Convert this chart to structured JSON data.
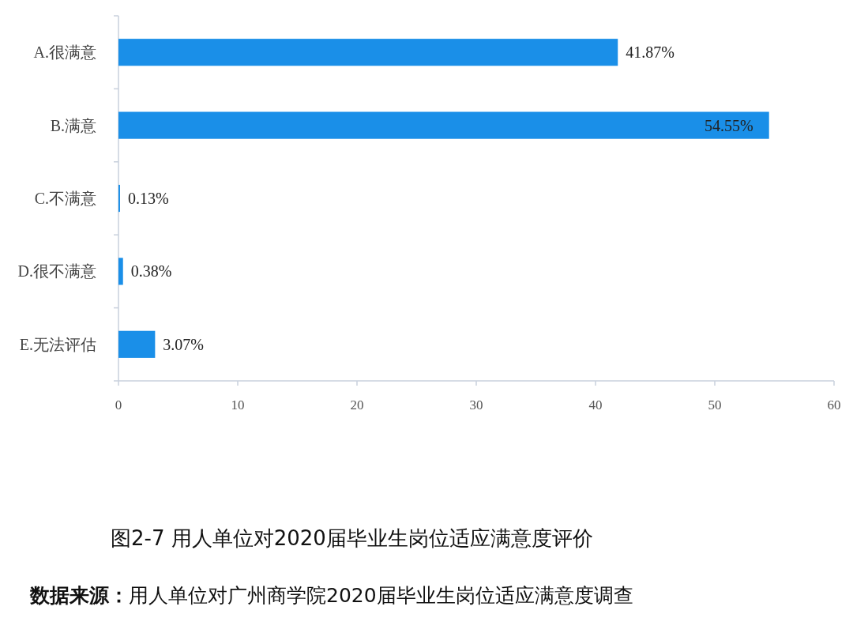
{
  "chart_data": {
    "type": "bar",
    "orientation": "horizontal",
    "title": "图2-7  用人单位对2020届毕业生岗位适应满意度评价",
    "categories": [
      "A.很满意",
      "B.满意",
      "C.不满意",
      "D.很不满意",
      "E.无法评估"
    ],
    "values": [
      41.87,
      54.55,
      0.13,
      0.38,
      3.07
    ],
    "value_labels": [
      "41.87%",
      "54.55%",
      "0.13%",
      "0.38%",
      "3.07%"
    ],
    "color": "#1a8fe8",
    "xlim": [
      0,
      60
    ],
    "xticks": [
      0,
      10,
      20,
      30,
      40,
      50,
      60
    ],
    "annotations": [
      "**数据来源：**用人单位对广州商学院2020届毕业生岗位适应满意度调查"
    ]
  }
}
